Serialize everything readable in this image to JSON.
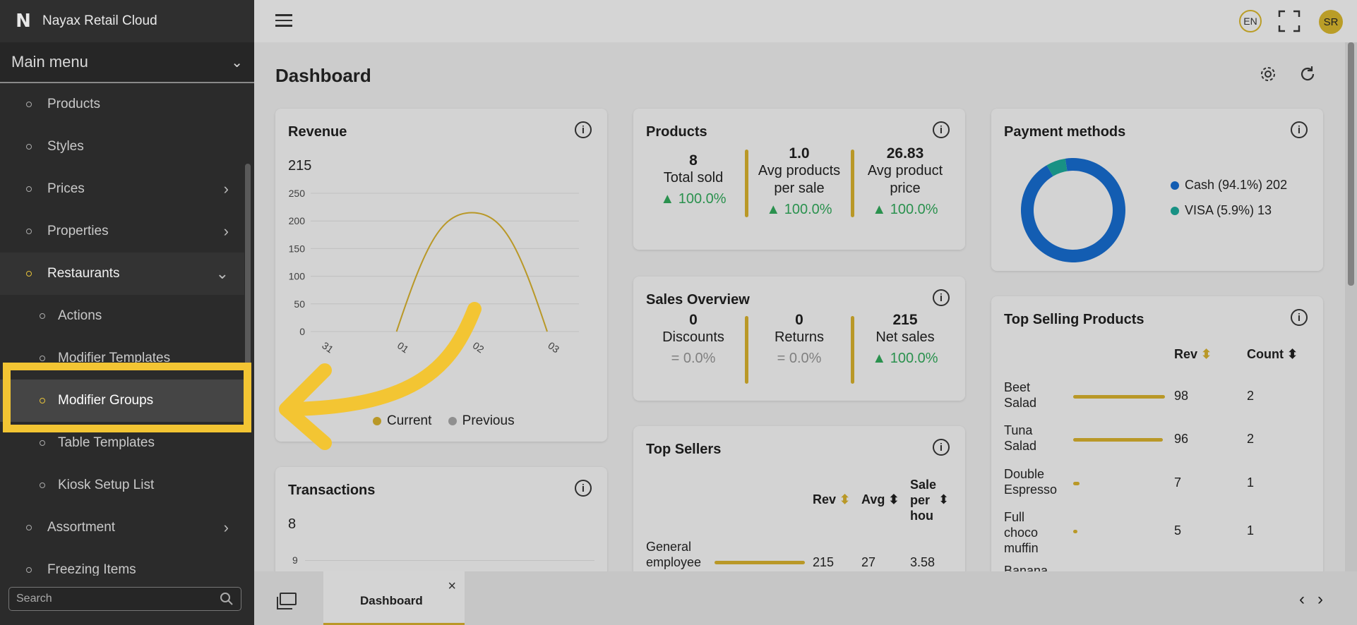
{
  "app": {
    "title": "Nayax Retail Cloud",
    "logo_letter": "N"
  },
  "sidebar": {
    "main_menu_label": "Main menu",
    "items": [
      {
        "label": "Products",
        "chevron": ""
      },
      {
        "label": "Styles",
        "chevron": ""
      },
      {
        "label": "Prices",
        "chevron": "›"
      },
      {
        "label": "Properties",
        "chevron": "›"
      },
      {
        "label": "Restaurants",
        "chevron": "⌄"
      },
      {
        "label": "Actions",
        "chevron": ""
      },
      {
        "label": "Modifier Templates",
        "chevron": ""
      },
      {
        "label": "Modifier Groups",
        "chevron": ""
      },
      {
        "label": "Table Templates",
        "chevron": ""
      },
      {
        "label": "Kiosk Setup List",
        "chevron": ""
      },
      {
        "label": "Assortment",
        "chevron": "›"
      },
      {
        "label": "Freezing Items",
        "chevron": ""
      }
    ],
    "search_placeholder": "Search"
  },
  "topbar": {
    "lang": "EN",
    "avatar": "SR"
  },
  "page": {
    "title": "Dashboard"
  },
  "revenue": {
    "title": "Revenue",
    "total": "215",
    "yticks": [
      "250",
      "200",
      "150",
      "100",
      "50",
      "0"
    ],
    "xticks": [
      "31",
      "01",
      "02",
      "03"
    ],
    "legend_current": "Current",
    "legend_previous": "Previous",
    "chart_data": {
      "type": "line",
      "x": [
        "31",
        "01",
        "02",
        "03"
      ],
      "series": [
        {
          "name": "Current",
          "values": [
            0,
            0,
            215,
            0
          ]
        }
      ],
      "ylim": [
        0,
        250
      ]
    }
  },
  "products": {
    "title": "Products",
    "kpis": [
      {
        "value": "8",
        "label1": "Total sold",
        "label2": "",
        "pct": "▲ 100.0%"
      },
      {
        "value": "1.0",
        "label1": "Avg products",
        "label2": "per sale",
        "pct": "▲ 100.0%"
      },
      {
        "value": "26.83",
        "label1": "Avg product",
        "label2": "price",
        "pct": "▲ 100.0%"
      }
    ]
  },
  "sales": {
    "title": "Sales Overview",
    "kpis": [
      {
        "value": "0",
        "label": "Discounts",
        "pct": "= 0.0%"
      },
      {
        "value": "0",
        "label": "Returns",
        "pct": "= 0.0%"
      },
      {
        "value": "215",
        "label": "Net sales",
        "pct": "▲ 100.0%"
      }
    ]
  },
  "top_sellers": {
    "title": "Top Sellers",
    "headers": {
      "rev": "Rev",
      "avg": "Avg",
      "sale1": "Sale",
      "sale2": "per",
      "sale3": "hou"
    },
    "rows": [
      {
        "name1": "General",
        "name2": "employee",
        "rev": "215",
        "avg": "27",
        "sph": "3.58"
      }
    ]
  },
  "payment": {
    "title": "Payment methods",
    "items": [
      {
        "label": "Cash (94.1%) 202",
        "color": "#1565c0"
      },
      {
        "label": "VISA (5.9%) 13",
        "color": "#1a9d8f"
      }
    ],
    "chart_data": {
      "type": "pie",
      "categories": [
        "Cash",
        "VISA"
      ],
      "values": [
        202,
        13
      ]
    }
  },
  "top_products": {
    "title": "Top Selling Products",
    "headers": {
      "rev": "Rev",
      "count": "Count"
    },
    "rows": [
      {
        "l1": "Beet",
        "l2": "Salad",
        "l3": "",
        "rev": "98",
        "count": "2"
      },
      {
        "l1": "Tuna",
        "l2": "Salad",
        "l3": "",
        "rev": "96",
        "count": "2"
      },
      {
        "l1": "Double",
        "l2": "Espresso",
        "l3": "",
        "rev": "7",
        "count": "1"
      },
      {
        "l1": "Full",
        "l2": "choco",
        "l3": "muffin",
        "rev": "5",
        "count": "1"
      },
      {
        "l1": "Banana",
        "l2": "",
        "l3": "",
        "rev": "",
        "count": ""
      }
    ]
  },
  "transactions": {
    "title": "Transactions",
    "total": "8",
    "ytick": "9"
  },
  "bottom": {
    "tab_label": "Dashboard",
    "close": "×"
  }
}
